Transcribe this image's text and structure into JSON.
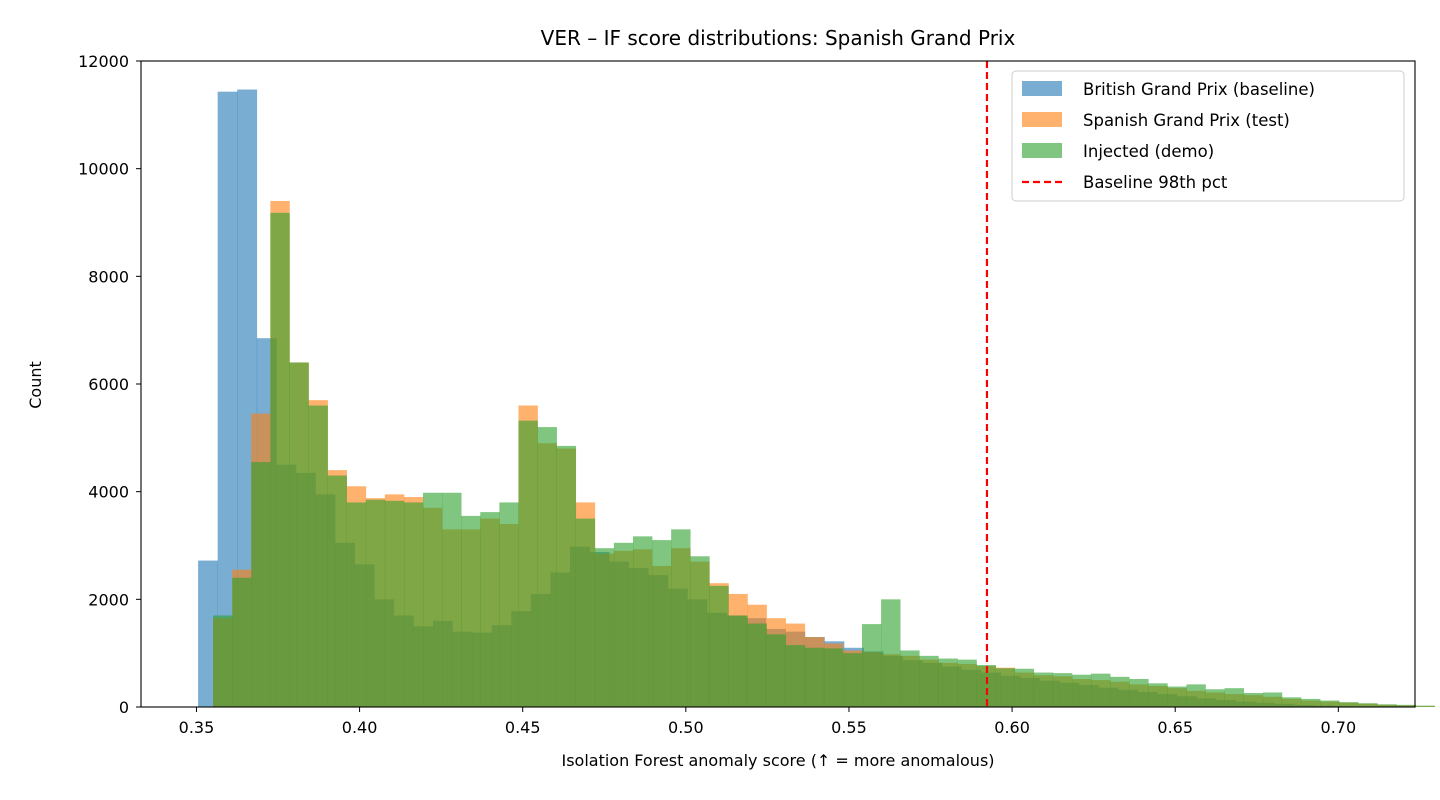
{
  "chart_data": {
    "type": "histogram",
    "title": "VER – IF score distributions: Spanish Grand Prix",
    "xlabel": "Isolation Forest anomaly score (↑ = more anomalous)",
    "ylabel": "Count",
    "xlim": [
      0.333,
      0.7235
    ],
    "ylim": [
      0,
      12000
    ],
    "xticks": [
      0.35,
      0.4,
      0.45,
      0.5,
      0.55,
      0.6,
      0.65,
      0.7
    ],
    "xtick_labels": [
      "0.35",
      "0.40",
      "0.45",
      "0.50",
      "0.55",
      "0.60",
      "0.65",
      "0.70"
    ],
    "yticks": [
      0,
      2000,
      4000,
      6000,
      8000,
      10000,
      12000
    ],
    "ytick_labels": [
      "0",
      "2000",
      "4000",
      "6000",
      "8000",
      "10000",
      "12000"
    ],
    "grid": false,
    "legend_position": "top-right",
    "alpha": 0.6,
    "series": [
      {
        "name": "British Grand Prix (baseline)",
        "color": "#1f77b4",
        "bins_start": 0.3505,
        "bin_width": 0.006,
        "values": [
          2720,
          11430,
          11470,
          6850,
          4500,
          4350,
          3950,
          3050,
          2650,
          2000,
          1700,
          1500,
          1600,
          1400,
          1380,
          1520,
          1780,
          2100,
          2500,
          2980,
          2880,
          2700,
          2580,
          2450,
          2200,
          2000,
          1750,
          1700,
          1650,
          1450,
          1400,
          1300,
          1220,
          1100,
          1030,
          950,
          870,
          820,
          750,
          690,
          640,
          580,
          540,
          490,
          450,
          410,
          360,
          320,
          280,
          240,
          200,
          160,
          130,
          100,
          80,
          60,
          40,
          30,
          20,
          10
        ]
      },
      {
        "name": "Spanish Grand Prix (test)",
        "color": "#ff7f0e",
        "bins_start": 0.3551,
        "bin_width": 0.00585,
        "values": [
          1650,
          2550,
          5450,
          9400,
          6400,
          5700,
          4400,
          4100,
          3880,
          3950,
          3900,
          3700,
          3300,
          3300,
          3500,
          3400,
          5600,
          4900,
          4800,
          3800,
          2850,
          2900,
          2930,
          2620,
          2950,
          2700,
          2300,
          2100,
          1900,
          1650,
          1550,
          1300,
          1180,
          1050,
          1020,
          980,
          950,
          880,
          820,
          800,
          760,
          730,
          640,
          590,
          570,
          520,
          500,
          470,
          420,
          390,
          350,
          300,
          270,
          240,
          220,
          190,
          150,
          120,
          100,
          80,
          60,
          40,
          30,
          20
        ]
      },
      {
        "name": "Injected (demo)",
        "color": "#2ca02c",
        "bins_start": 0.3551,
        "bin_width": 0.00585,
        "values": [
          1700,
          2400,
          4550,
          9180,
          6400,
          5600,
          4300,
          3800,
          3850,
          3830,
          3800,
          3980,
          3980,
          3550,
          3620,
          3800,
          5320,
          5200,
          4850,
          3500,
          2950,
          3050,
          3170,
          3100,
          3300,
          2800,
          2250,
          1700,
          1550,
          1350,
          1150,
          1100,
          1090,
          1000,
          1540,
          2000,
          1050,
          950,
          900,
          880,
          780,
          720,
          710,
          640,
          630,
          600,
          620,
          560,
          520,
          440,
          380,
          420,
          330,
          350,
          260,
          270,
          180,
          150,
          120,
          90,
          70,
          50,
          40,
          25
        ]
      }
    ],
    "annotations": [
      {
        "type": "vline",
        "name": "Baseline 98th pct",
        "x": 0.5923,
        "color": "#ff0000",
        "style": "dashed"
      }
    ]
  }
}
